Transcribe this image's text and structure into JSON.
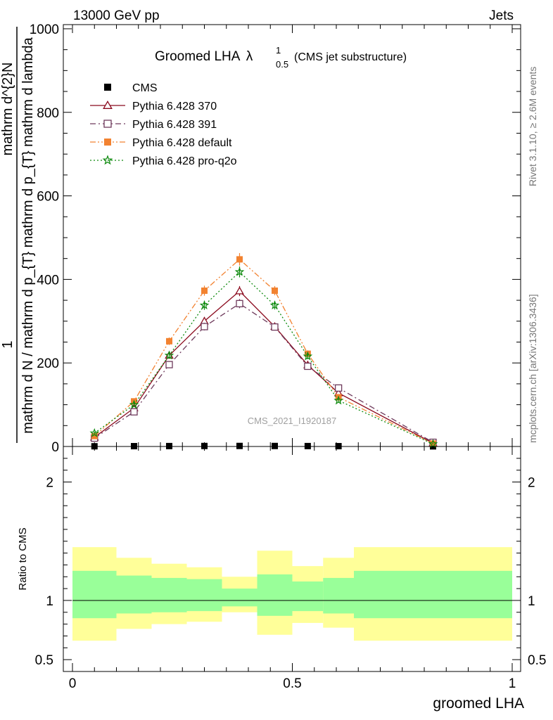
{
  "header": {
    "energy_label": "13000 GeV pp",
    "category_label": "Jets",
    "rivet_label": "Rivet 3.1.10, ≥ 2.6M events",
    "mcplots_label": "mcplots.cern.ch [arXiv:1306.3436]",
    "analysis_label": "CMS_2021_I1920187"
  },
  "chart_data": [
    {
      "type": "line",
      "title": "Groomed LHA",
      "title_symbol": "λ",
      "title_sup": "1",
      "title_sub": "0.5",
      "subtitle": "(CMS jet substructure)",
      "ylabel_fraction_top": "1",
      "ylabel_numerator": "mathrm d^{2}N",
      "ylabel_denominator": "mathrm d N / mathrm d p_{T} mathrm d p_{T} mathrm d lambda",
      "ylim": [
        0,
        1010
      ],
      "yticks": [
        0,
        200,
        400,
        600,
        800,
        1000
      ],
      "xlim": [
        0,
        1
      ],
      "legend_position": "top-left",
      "series": [
        {
          "name": "CMS",
          "color": "#000000",
          "marker": "filled-square",
          "x": [
            0.05,
            0.14,
            0.22,
            0.3,
            0.38,
            0.46,
            0.535,
            0.605,
            0.82
          ],
          "y": [
            0.5,
            0.8,
            1.0,
            1.2,
            1.3,
            1.2,
            1.0,
            0.8,
            0.3
          ]
        },
        {
          "name": "Pythia 6.428 370",
          "color": "#8b0a1e",
          "marker": "open-triangle",
          "dash": "solid",
          "x": [
            0.05,
            0.14,
            0.22,
            0.3,
            0.38,
            0.46,
            0.535,
            0.605,
            0.82
          ],
          "y": [
            22,
            92,
            218,
            300,
            372,
            287,
            195,
            128,
            8
          ],
          "err": [
            2,
            4,
            7,
            10,
            12,
            8,
            6,
            5,
            1
          ]
        },
        {
          "name": "Pythia 6.428 391",
          "color": "#6e3a5c",
          "marker": "open-square",
          "dash": "dashdot",
          "x": [
            0.05,
            0.14,
            0.22,
            0.3,
            0.38,
            0.46,
            0.535,
            0.605,
            0.82
          ],
          "y": [
            20,
            83,
            196,
            287,
            342,
            286,
            192,
            140,
            10
          ],
          "err": [
            2,
            4,
            7,
            9,
            11,
            8,
            6,
            5,
            1
          ]
        },
        {
          "name": "Pythia 6.428 default",
          "color": "#f28230",
          "marker": "filled-square",
          "dash": "dashdotdot",
          "x": [
            0.05,
            0.14,
            0.22,
            0.3,
            0.38,
            0.46,
            0.535,
            0.605,
            0.82
          ],
          "y": [
            25,
            108,
            252,
            373,
            448,
            373,
            222,
            118,
            7
          ],
          "err": [
            3,
            5,
            9,
            12,
            15,
            11,
            8,
            5,
            1
          ]
        },
        {
          "name": "Pythia 6.428 pro-q2o",
          "color": "#0e8a0e",
          "marker": "star",
          "dash": "dotted",
          "x": [
            0.05,
            0.14,
            0.22,
            0.3,
            0.38,
            0.46,
            0.535,
            0.605,
            0.82
          ],
          "y": [
            32,
            100,
            218,
            338,
            418,
            338,
            216,
            110,
            6
          ],
          "err": [
            3,
            5,
            8,
            11,
            13,
            10,
            7,
            5,
            1
          ]
        }
      ]
    },
    {
      "type": "area",
      "ylabel": "Ratio to CMS",
      "xlabel": "groomed LHA",
      "ylim": [
        0.4,
        2.3
      ],
      "yticks": [
        0.5,
        1,
        2
      ],
      "ytick_labels": [
        "0.5",
        "1",
        "2"
      ],
      "xlim": [
        0,
        1
      ],
      "xticks": [
        0,
        0.5,
        1
      ],
      "xtick_labels": [
        "0",
        "0.5",
        "1"
      ],
      "reference": 1,
      "band_colors": {
        "inner": "#99ff99",
        "outer": "#ffff99"
      },
      "bins": [
        {
          "lo": 0.0,
          "hi": 0.1,
          "inner": [
            0.85,
            1.25
          ],
          "outer": [
            0.66,
            1.45
          ]
        },
        {
          "lo": 0.1,
          "hi": 0.18,
          "inner": [
            0.89,
            1.21
          ],
          "outer": [
            0.76,
            1.36
          ]
        },
        {
          "lo": 0.18,
          "hi": 0.26,
          "inner": [
            0.9,
            1.19
          ],
          "outer": [
            0.8,
            1.31
          ]
        },
        {
          "lo": 0.26,
          "hi": 0.34,
          "inner": [
            0.91,
            1.18
          ],
          "outer": [
            0.82,
            1.28
          ]
        },
        {
          "lo": 0.34,
          "hi": 0.42,
          "inner": [
            0.95,
            1.1
          ],
          "outer": [
            0.9,
            1.2
          ]
        },
        {
          "lo": 0.42,
          "hi": 0.5,
          "inner": [
            0.87,
            1.22
          ],
          "outer": [
            0.71,
            1.42
          ]
        },
        {
          "lo": 0.5,
          "hi": 0.57,
          "inner": [
            0.91,
            1.16
          ],
          "outer": [
            0.81,
            1.29
          ]
        },
        {
          "lo": 0.57,
          "hi": 0.64,
          "inner": [
            0.89,
            1.19
          ],
          "outer": [
            0.77,
            1.36
          ]
        },
        {
          "lo": 0.64,
          "hi": 1.0,
          "inner": [
            0.85,
            1.25
          ],
          "outer": [
            0.66,
            1.45
          ]
        }
      ]
    }
  ]
}
